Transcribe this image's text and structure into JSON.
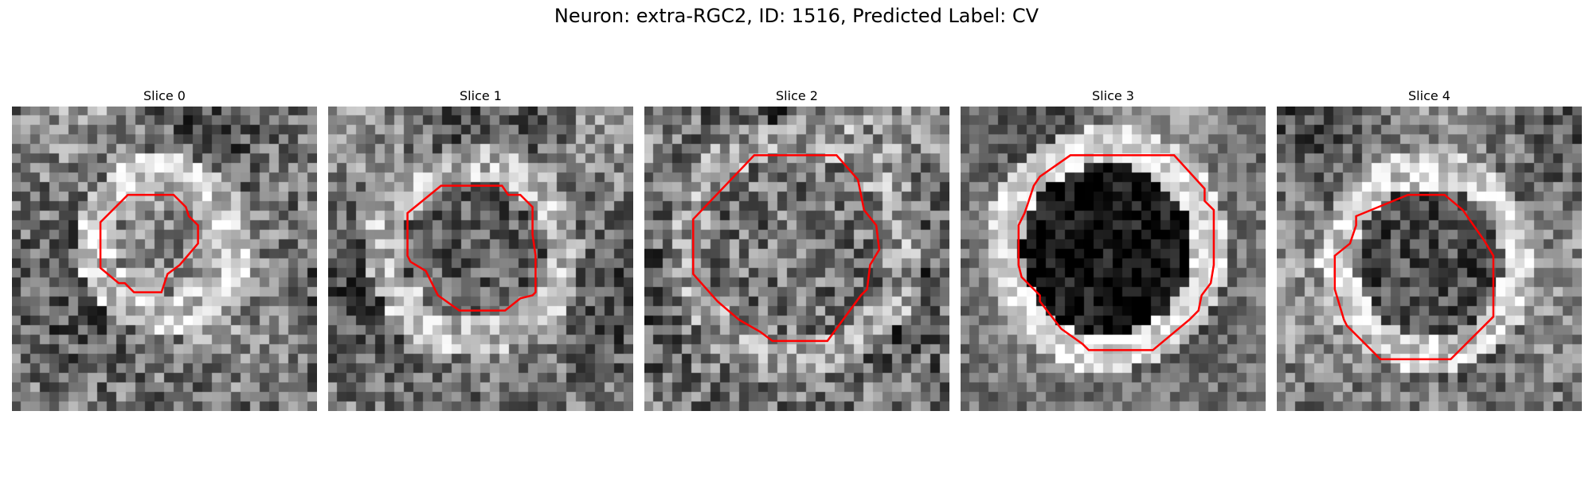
{
  "figure": {
    "title": "Neuron: extra-RGC2, ID: 1516, Predicted Label: CV"
  },
  "panels": [
    {
      "title": "Slice 0",
      "center": [
        0.5,
        0.45
      ],
      "cell_radius": 0.17,
      "cell_tone": 0.55,
      "ring_tone": 0.78,
      "contrast": 0.28,
      "contour": [
        [
          0.38,
          0.29
        ],
        [
          0.53,
          0.29
        ],
        [
          0.57,
          0.33
        ],
        [
          0.58,
          0.36
        ],
        [
          0.61,
          0.39
        ],
        [
          0.61,
          0.45
        ],
        [
          0.55,
          0.52
        ],
        [
          0.51,
          0.55
        ],
        [
          0.49,
          0.61
        ],
        [
          0.4,
          0.61
        ],
        [
          0.37,
          0.58
        ],
        [
          0.35,
          0.58
        ],
        [
          0.29,
          0.53
        ],
        [
          0.29,
          0.38
        ]
      ]
    },
    {
      "title": "Slice 1",
      "center": [
        0.48,
        0.47
      ],
      "cell_radius": 0.23,
      "cell_tone": 0.38,
      "ring_tone": 0.72,
      "contrast": 0.26,
      "contour": [
        [
          0.37,
          0.26
        ],
        [
          0.57,
          0.26
        ],
        [
          0.59,
          0.29
        ],
        [
          0.63,
          0.29
        ],
        [
          0.67,
          0.33
        ],
        [
          0.67,
          0.42
        ],
        [
          0.68,
          0.49
        ],
        [
          0.68,
          0.61
        ],
        [
          0.67,
          0.62
        ],
        [
          0.63,
          0.63
        ],
        [
          0.58,
          0.67
        ],
        [
          0.43,
          0.67
        ],
        [
          0.36,
          0.62
        ],
        [
          0.35,
          0.6
        ],
        [
          0.32,
          0.54
        ],
        [
          0.27,
          0.51
        ],
        [
          0.26,
          0.49
        ],
        [
          0.26,
          0.35
        ]
      ]
    },
    {
      "title": "Slice 2",
      "center": [
        0.5,
        0.46
      ],
      "cell_radius": 0.3,
      "cell_tone": 0.45,
      "ring_tone": 0.62,
      "contrast": 0.3,
      "contour": [
        [
          0.36,
          0.16
        ],
        [
          0.63,
          0.16
        ],
        [
          0.7,
          0.24
        ],
        [
          0.72,
          0.34
        ],
        [
          0.76,
          0.39
        ],
        [
          0.77,
          0.47
        ],
        [
          0.74,
          0.52
        ],
        [
          0.73,
          0.6
        ],
        [
          0.71,
          0.62
        ],
        [
          0.6,
          0.77
        ],
        [
          0.42,
          0.77
        ],
        [
          0.38,
          0.74
        ],
        [
          0.31,
          0.7
        ],
        [
          0.24,
          0.64
        ],
        [
          0.16,
          0.55
        ],
        [
          0.16,
          0.37
        ]
      ]
    },
    {
      "title": "Slice 3",
      "center": [
        0.48,
        0.47
      ],
      "cell_radius": 0.28,
      "cell_tone": 0.08,
      "ring_tone": 0.85,
      "contrast": 0.18,
      "contour": [
        [
          0.36,
          0.16
        ],
        [
          0.7,
          0.16
        ],
        [
          0.8,
          0.27
        ],
        [
          0.8,
          0.31
        ],
        [
          0.83,
          0.34
        ],
        [
          0.83,
          0.52
        ],
        [
          0.82,
          0.58
        ],
        [
          0.79,
          0.62
        ],
        [
          0.78,
          0.67
        ],
        [
          0.75,
          0.7
        ],
        [
          0.63,
          0.8
        ],
        [
          0.42,
          0.8
        ],
        [
          0.4,
          0.78
        ],
        [
          0.33,
          0.73
        ],
        [
          0.26,
          0.64
        ],
        [
          0.26,
          0.62
        ],
        [
          0.2,
          0.56
        ],
        [
          0.19,
          0.52
        ],
        [
          0.19,
          0.39
        ],
        [
          0.21,
          0.35
        ],
        [
          0.22,
          0.32
        ],
        [
          0.24,
          0.26
        ],
        [
          0.26,
          0.23
        ]
      ]
    },
    {
      "title": "Slice 4",
      "center": [
        0.5,
        0.51
      ],
      "cell_radius": 0.24,
      "cell_tone": 0.3,
      "ring_tone": 0.8,
      "contrast": 0.24,
      "contour": [
        [
          0.43,
          0.29
        ],
        [
          0.55,
          0.29
        ],
        [
          0.61,
          0.34
        ],
        [
          0.68,
          0.44
        ],
        [
          0.71,
          0.49
        ],
        [
          0.71,
          0.69
        ],
        [
          0.57,
          0.83
        ],
        [
          0.34,
          0.83
        ],
        [
          0.29,
          0.78
        ],
        [
          0.23,
          0.72
        ],
        [
          0.22,
          0.7
        ],
        [
          0.19,
          0.6
        ],
        [
          0.19,
          0.49
        ],
        [
          0.24,
          0.45
        ],
        [
          0.26,
          0.39
        ],
        [
          0.26,
          0.36
        ]
      ]
    }
  ]
}
